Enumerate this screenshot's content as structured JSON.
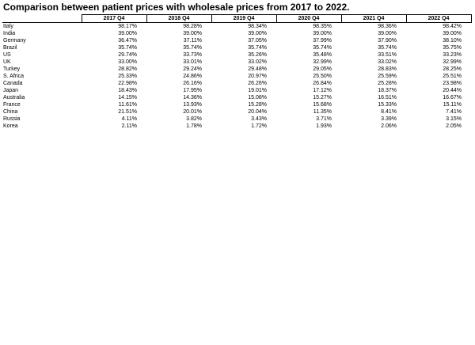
{
  "chart_data": {
    "type": "table",
    "title": "Comparison between patient prices with wholesale prices from 2017 to 2022.",
    "columns": [
      "2017 Q4",
      "2018 Q4",
      "2019 Q4",
      "2020 Q4",
      "2021 Q4",
      "2022 Q4"
    ],
    "rows": [
      {
        "country": "Italy",
        "values": [
          "98.17%",
          "98.28%",
          "98.34%",
          "98.35%",
          "98.36%",
          "98.42%"
        ]
      },
      {
        "country": "India",
        "values": [
          "39.00%",
          "39.00%",
          "39.00%",
          "39.00%",
          "39.00%",
          "39.00%"
        ]
      },
      {
        "country": "Germany",
        "values": [
          "36.47%",
          "37.11%",
          "37.05%",
          "37.99%",
          "37.90%",
          "38.10%"
        ]
      },
      {
        "country": "Brazil",
        "values": [
          "35.74%",
          "35.74%",
          "35.74%",
          "35.74%",
          "35.74%",
          "35.75%"
        ]
      },
      {
        "country": "US",
        "values": [
          "29.74%",
          "33.73%",
          "35.26%",
          "35.48%",
          "33.51%",
          "33.23%"
        ]
      },
      {
        "country": "UK",
        "values": [
          "33.00%",
          "33.01%",
          "33.02%",
          "32.99%",
          "33.02%",
          "32.99%"
        ]
      },
      {
        "country": "Turkey",
        "values": [
          "28.82%",
          "29.24%",
          "29.48%",
          "29.05%",
          "28.83%",
          "28.25%"
        ]
      },
      {
        "country": "S. Africa",
        "values": [
          "25.33%",
          "24.86%",
          "20.97%",
          "25.50%",
          "25.59%",
          "25.51%"
        ]
      },
      {
        "country": "Canada",
        "values": [
          "22.98%",
          "26.16%",
          "26.26%",
          "26.84%",
          "25.28%",
          "23.98%"
        ]
      },
      {
        "country": "Japan",
        "values": [
          "18.43%",
          "17.95%",
          "19.01%",
          "17.12%",
          "18.37%",
          "20.44%"
        ]
      },
      {
        "country": "Australia",
        "values": [
          "14.15%",
          "14.36%",
          "15.08%",
          "15.27%",
          "16.51%",
          "16.67%"
        ]
      },
      {
        "country": "France",
        "values": [
          "11.61%",
          "13.93%",
          "15.28%",
          "15.68%",
          "15.33%",
          "15.11%"
        ]
      },
      {
        "country": "China",
        "values": [
          "21.51%",
          "20.01%",
          "20.04%",
          "11.35%",
          "8.41%",
          "7.41%"
        ]
      },
      {
        "country": "Russia",
        "values": [
          "4.11%",
          "3.82%",
          "3.43%",
          "3.71%",
          "3.39%",
          "3.15%"
        ]
      },
      {
        "country": "Korea",
        "values": [
          "2.11%",
          "1.78%",
          "1.72%",
          "1.93%",
          "2.06%",
          "2.05%"
        ]
      }
    ]
  }
}
